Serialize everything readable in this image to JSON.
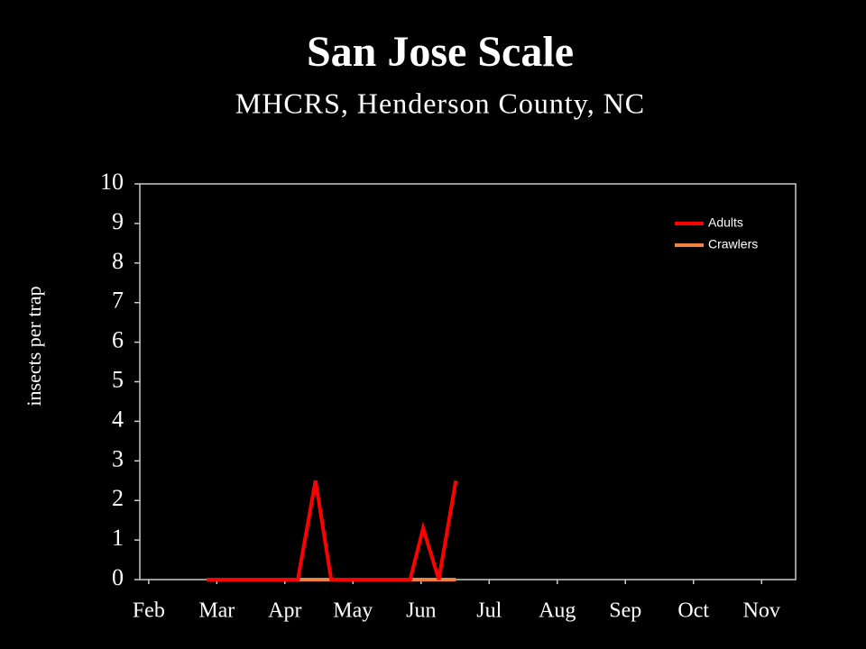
{
  "chart_data": {
    "type": "line",
    "title": "San Jose Scale",
    "subtitle": "MHCRS, Henderson County, NC",
    "y_label": "insects per trap",
    "xlim": [
      -0.13,
      9.5
    ],
    "xticks": [
      {
        "value": 0,
        "label": "Feb"
      },
      {
        "value": 1,
        "label": "Mar"
      },
      {
        "value": 2,
        "label": "Apr"
      },
      {
        "value": 3,
        "label": "May"
      },
      {
        "value": 4,
        "label": "Jun"
      },
      {
        "value": 5,
        "label": "Jul"
      },
      {
        "value": 6,
        "label": "Aug"
      },
      {
        "value": 7,
        "label": "Sep"
      },
      {
        "value": 8,
        "label": "Oct"
      },
      {
        "value": 9,
        "label": "Nov"
      }
    ],
    "ylim": [
      0,
      10
    ],
    "yticks": [
      0,
      1,
      2,
      3,
      4,
      5,
      6,
      7,
      8,
      9,
      10
    ],
    "legend": "top-right",
    "series": [
      {
        "name": "Crawlers",
        "color": "#f08040",
        "x": [
          0.85,
          2.19,
          2.45,
          2.68,
          3.84,
          4.03,
          4.26,
          4.51
        ],
        "values": [
          0,
          0,
          0,
          0,
          0,
          0,
          0,
          0
        ]
      },
      {
        "name": "Adults",
        "color": "#ff0000",
        "x": [
          0.85,
          2.19,
          2.45,
          2.68,
          3.84,
          4.03,
          4.26,
          4.51
        ],
        "values": [
          0,
          0,
          2.5,
          0,
          0,
          1.3,
          0,
          2.5
        ]
      }
    ]
  }
}
